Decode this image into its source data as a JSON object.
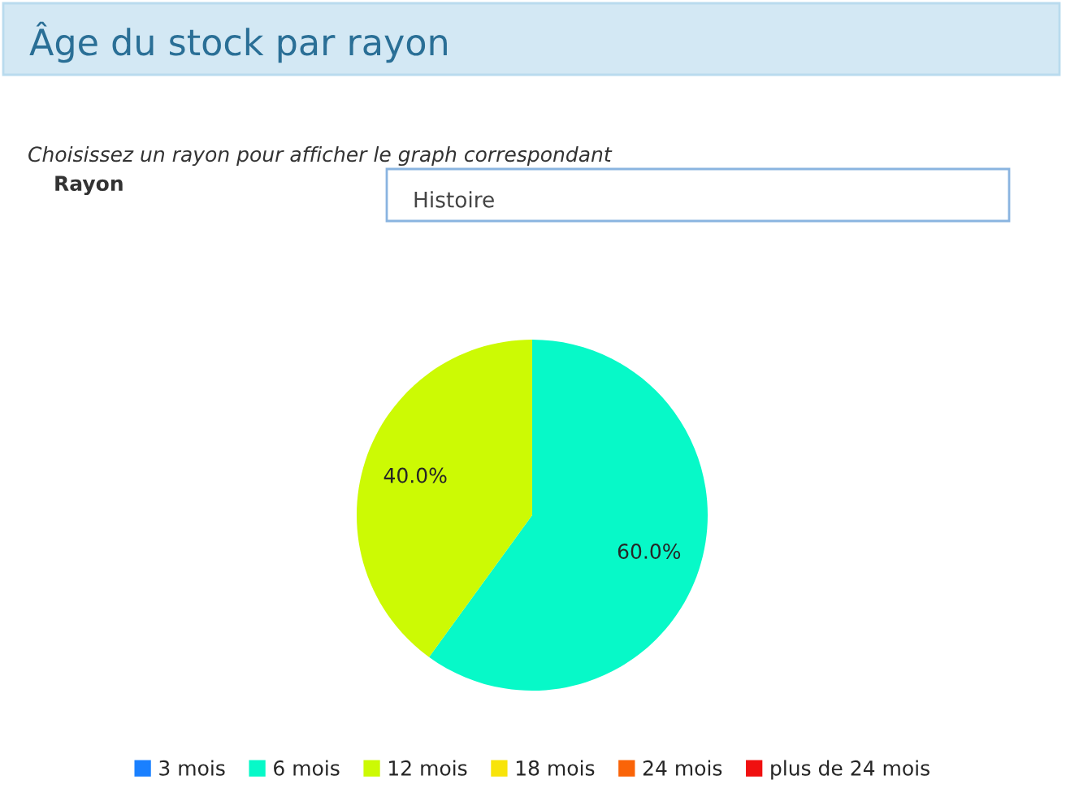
{
  "chart_data": {
    "type": "pie",
    "title": "Âge du stock par rayon",
    "annotations": [
      "Choisissez un rayon pour afficher le graph correspondant",
      "Rayon",
      "Histoire"
    ],
    "categories": [
      "3 mois",
      "6 mois",
      "12 mois",
      "18 mois",
      "24 mois",
      "plus de 24 mois"
    ],
    "values": [
      0,
      60,
      40,
      0,
      0,
      0
    ],
    "value_labels": [
      null,
      "60.0%",
      "40.0%",
      null,
      null,
      null
    ],
    "colors": [
      "#1a80ff",
      "#07f9c8",
      "#ccfa04",
      "#f8e40a",
      "#fa6408",
      "#f01010"
    ],
    "legend": "bottom"
  }
}
